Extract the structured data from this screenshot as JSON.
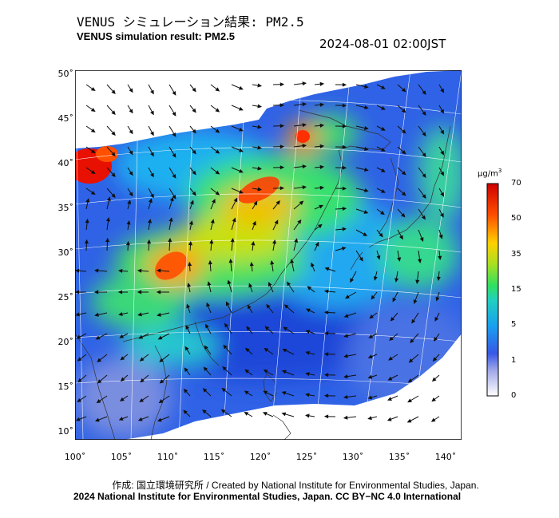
{
  "title_jp": "VENUS シミュレーション結果: PM2.5",
  "title_en": "VENUS simulation result: PM2.5",
  "timestamp": "2024-08-01 02:00JST",
  "colorbar": {
    "unit": "µg/m",
    "unit_sup": "3",
    "ticks": [
      {
        "value": "70",
        "frac": 1.0
      },
      {
        "value": "50",
        "frac": 0.8333
      },
      {
        "value": "35",
        "frac": 0.6667
      },
      {
        "value": "15",
        "frac": 0.5
      },
      {
        "value": "5",
        "frac": 0.3333
      },
      {
        "value": "1",
        "frac": 0.1667
      },
      {
        "value": "0",
        "frac": 0.0
      }
    ],
    "colors": [
      "#ffffff",
      "#8890e0",
      "#3050e8",
      "#10b0f0",
      "#30e070",
      "#c0e010",
      "#ffb000",
      "#ff3000",
      "#d80000"
    ]
  },
  "lat_labels": [
    "50˚",
    "45˚",
    "40˚",
    "35˚",
    "30˚",
    "25˚",
    "20˚",
    "15˚",
    "10˚"
  ],
  "lon_labels": [
    "100˚",
    "105˚",
    "110˚",
    "115˚",
    "120˚",
    "125˚",
    "130˚",
    "135˚",
    "140˚"
  ],
  "credit_line1": "作成: 国立環境研究所 / Created by National Institute for Environmental Studies, Japan.",
  "credit_line2": "2024 National Institute for Environmental Studies, Japan. CC BY−NC 4.0 International"
}
